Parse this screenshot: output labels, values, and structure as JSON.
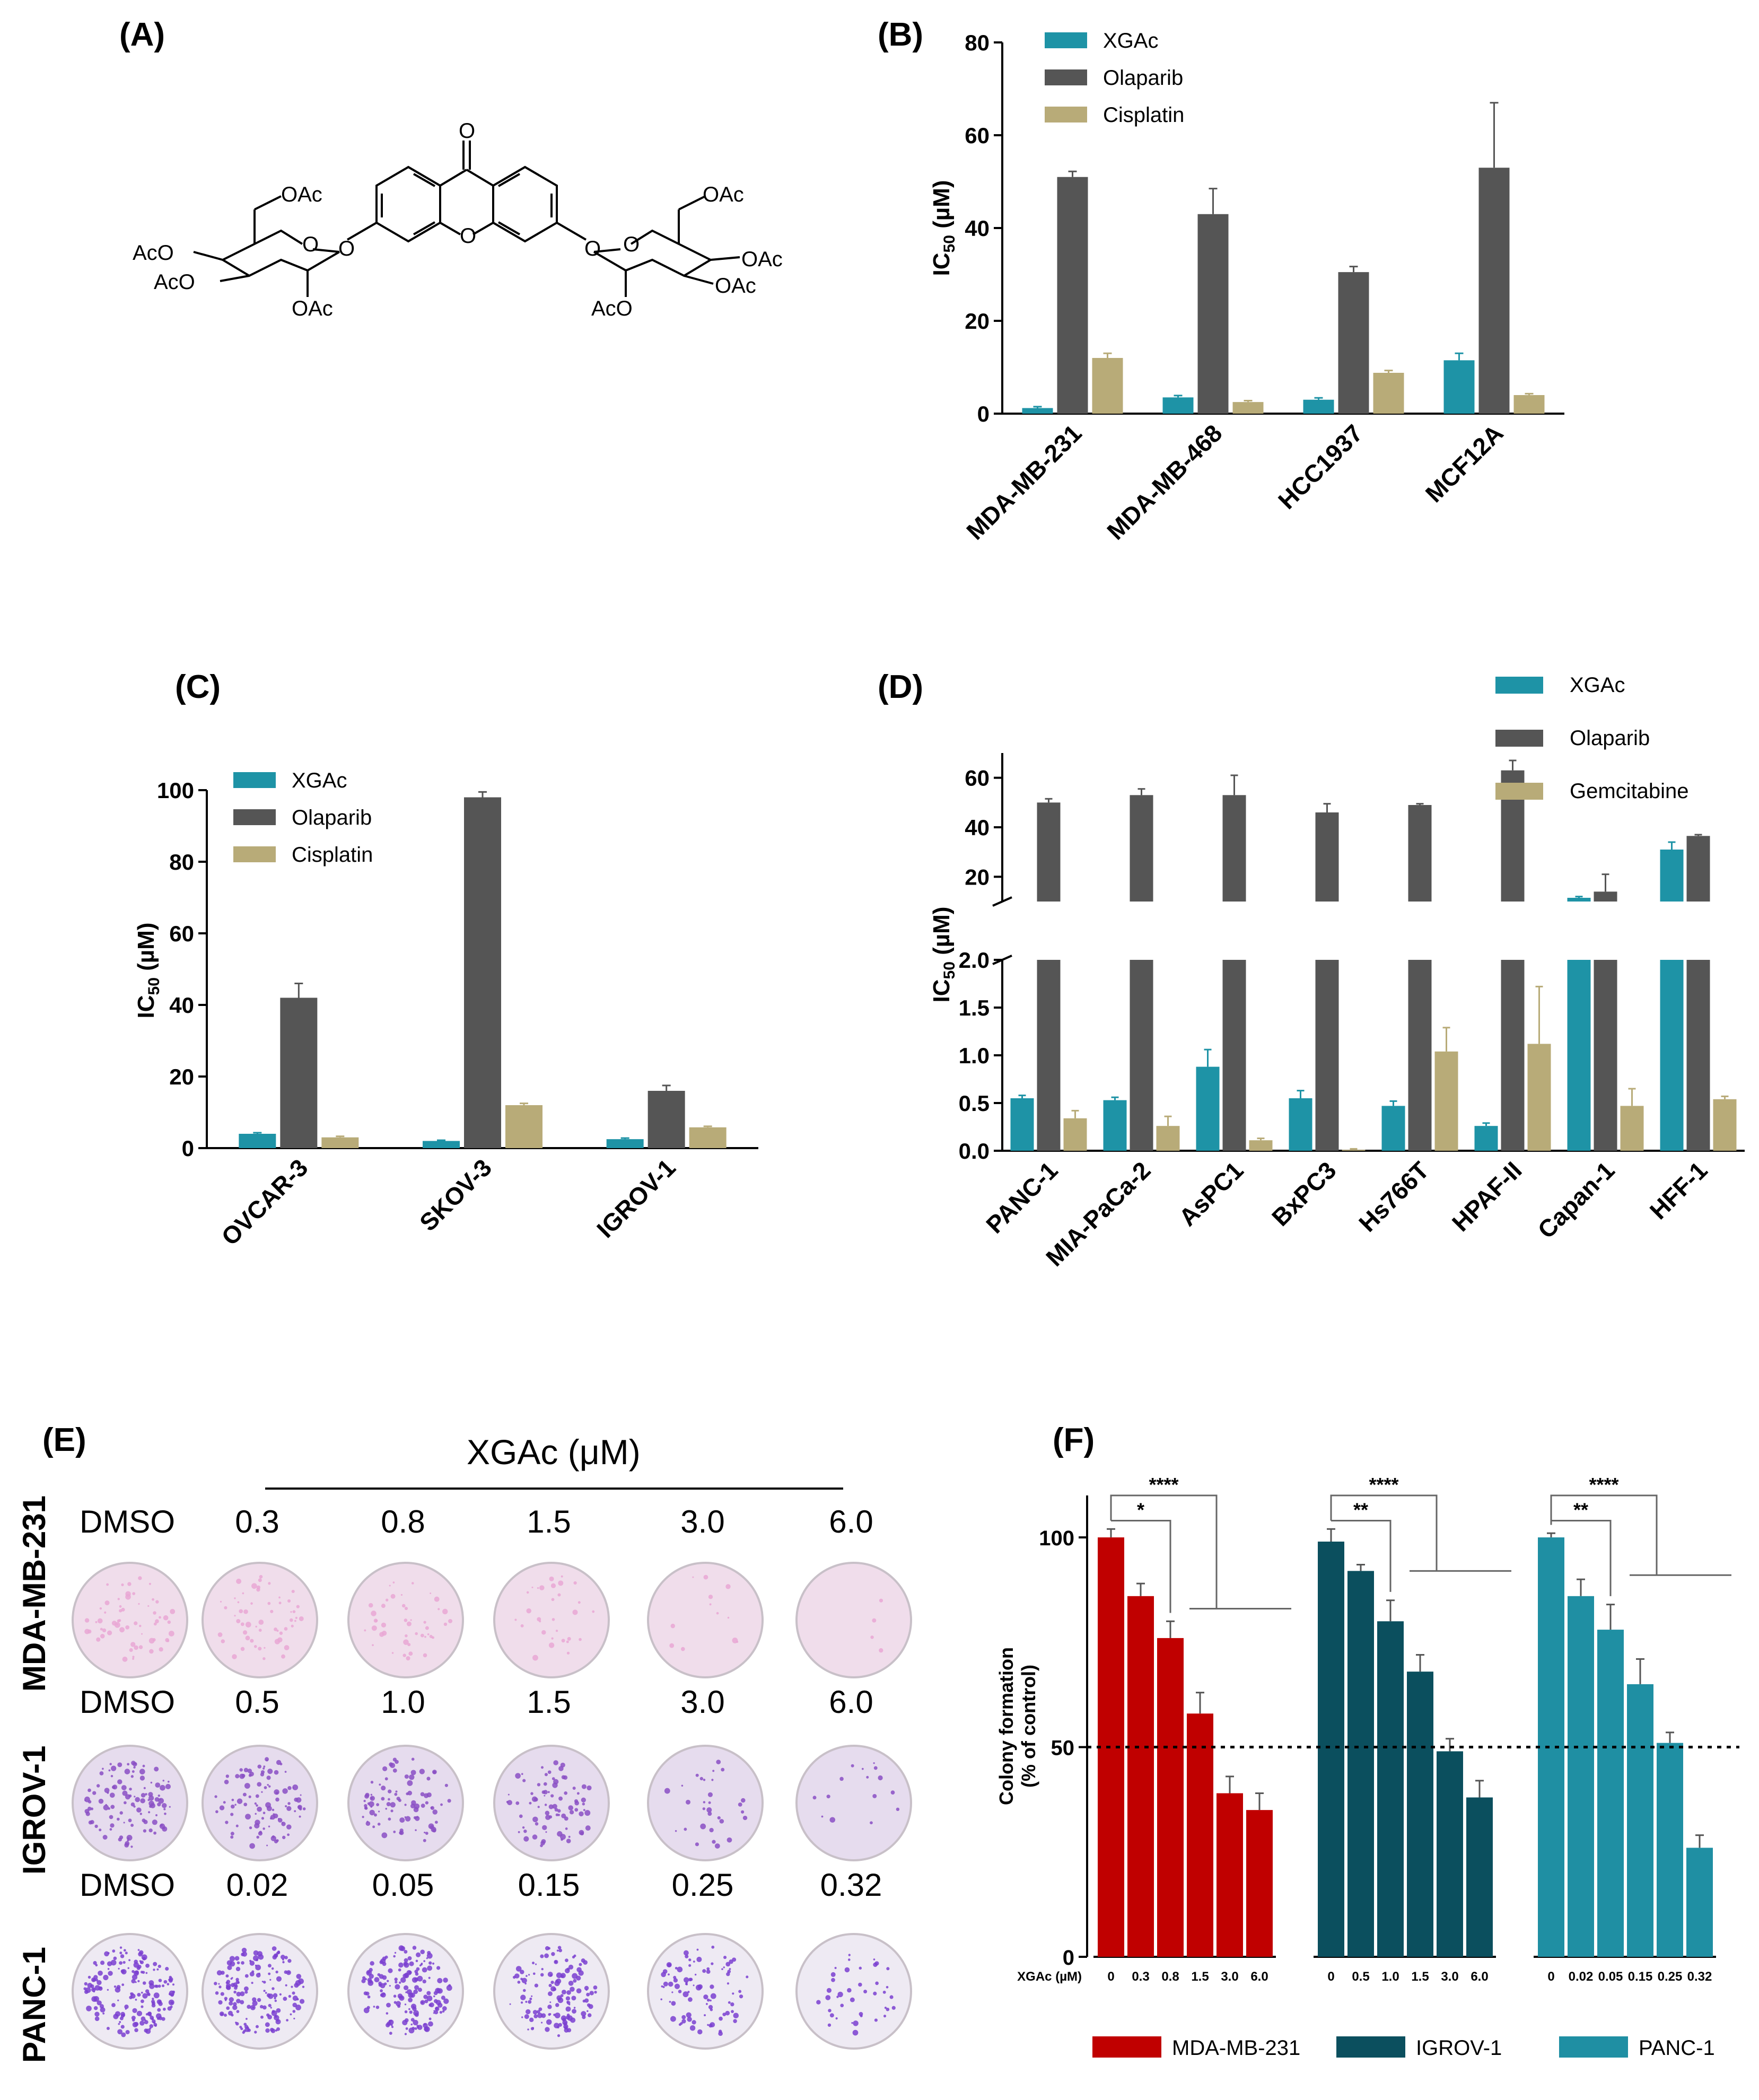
{
  "panels": {
    "A": "(A)",
    "B": "(B)",
    "C": "(C)",
    "D": "(D)",
    "E": "(E)",
    "F": "(F)"
  },
  "structure": {
    "carbonyl_o": "O",
    "ring_o": "O",
    "sugar_left": {
      "oac_top": "OAc",
      "aco_upper": "AcO",
      "aco_lower": "AcO",
      "oac_bottom": "OAc",
      "ring_o": "O",
      "link_o": "O"
    },
    "sugar_right": {
      "oac_top": "OAc",
      "oac_upper": "OAc",
      "oac_lower": "OAc",
      "aco_bottom": "AcO",
      "ring_o": "O",
      "link_o": "O"
    }
  },
  "colors": {
    "xgac": "#1e93a6",
    "olaparib": "#555555",
    "cisplatin": "#b8ab78",
    "mda": "#c00000",
    "igrov": "#0b4f5e",
    "panc": "#1f8fa3"
  },
  "chart_data": [
    {
      "id": "B",
      "type": "bar",
      "categories": [
        "MDA-MB-231",
        "MDA-MB-468",
        "HCC1937",
        "MCF12A"
      ],
      "series": [
        {
          "name": "XGAc",
          "values": [
            1.2,
            3.5,
            3.0,
            11.5
          ],
          "errors": [
            0.3,
            0.4,
            0.4,
            1.5
          ]
        },
        {
          "name": "Olaparib",
          "values": [
            51,
            43,
            30.5,
            53
          ],
          "errors": [
            1.2,
            5.5,
            1.2,
            14
          ]
        },
        {
          "name": "Cisplatin",
          "values": [
            12,
            2.5,
            8.8,
            4.0
          ],
          "errors": [
            1.0,
            0.3,
            0.5,
            0.3
          ]
        }
      ],
      "ylabel": "IC50 (µM)",
      "ylim": [
        0,
        80
      ],
      "yticks": [
        "0",
        "20",
        "40",
        "60",
        "80"
      ],
      "legend": "top-left"
    },
    {
      "id": "C",
      "type": "bar",
      "categories": [
        "OVCAR-3",
        "SKOV-3",
        "IGROV-1"
      ],
      "series": [
        {
          "name": "XGAc",
          "values": [
            4.0,
            2.0,
            2.5
          ],
          "errors": [
            0.3,
            0.2,
            0.3
          ]
        },
        {
          "name": "Olaparib",
          "values": [
            42,
            98,
            16
          ],
          "errors": [
            4,
            1.5,
            1.5
          ]
        },
        {
          "name": "Cisplatin",
          "values": [
            3.0,
            12,
            5.8
          ],
          "errors": [
            0.3,
            0.5,
            0.3
          ]
        }
      ],
      "ylabel": "IC50 (µM)",
      "ylim": [
        0,
        100
      ],
      "yticks": [
        "0",
        "20",
        "40",
        "60",
        "80",
        "100"
      ],
      "legend": "top-left"
    },
    {
      "id": "D",
      "type": "bar",
      "categories": [
        "PANC-1",
        "MIA-PaCa-2",
        "AsPC1",
        "BxPC3",
        "Hs766T",
        "HPAF-II",
        "Capan-1",
        "HFF-1"
      ],
      "series": [
        {
          "name": "XGAc",
          "values": [
            0.55,
            0.53,
            0.88,
            0.55,
            0.47,
            0.26,
            11.5,
            31
          ],
          "errors": [
            0.03,
            0.03,
            0.18,
            0.08,
            0.05,
            0.03,
            0.5,
            3
          ]
        },
        {
          "name": "Olaparib",
          "values": [
            50,
            53,
            53,
            46,
            49,
            63,
            14,
            36.5
          ],
          "errors": [
            1.5,
            2.5,
            8,
            3.5,
            0.5,
            4,
            7,
            0.5
          ]
        },
        {
          "name": "Gemcitabine",
          "values": [
            0.34,
            0.26,
            0.11,
            0.01,
            1.04,
            1.12,
            0.47,
            0.54
          ],
          "errors": [
            0.08,
            0.1,
            0.02,
            0.01,
            0.25,
            0.6,
            0.18,
            0.03
          ]
        }
      ],
      "ylabel": "IC50 (µM)",
      "ylim_lower": [
        0,
        2.0
      ],
      "ylim_upper": [
        10,
        70
      ],
      "yticks_lower": [
        "0.0",
        "0.5",
        "1.0",
        "1.5",
        "2.0"
      ],
      "yticks_upper": [
        "20",
        "40",
        "60"
      ],
      "legend": "top-right"
    },
    {
      "id": "F",
      "type": "bar",
      "groups": [
        {
          "name": "MDA-MB-231",
          "doses": [
            "0",
            "0.3",
            "0.8",
            "1.5",
            "3.0",
            "6.0"
          ],
          "values": [
            100,
            86,
            76,
            58,
            39,
            35
          ],
          "errors": [
            2,
            3,
            4,
            5,
            4,
            4
          ]
        },
        {
          "name": "IGROV-1",
          "doses": [
            "0",
            "0.5",
            "1.0",
            "1.5",
            "3.0",
            "6.0"
          ],
          "values": [
            99,
            92,
            80,
            68,
            49,
            38
          ],
          "errors": [
            3,
            1.5,
            5,
            4,
            3,
            4
          ]
        },
        {
          "name": "PANC-1",
          "doses": [
            "0",
            "0.02",
            "0.05",
            "0.15",
            "0.25",
            "0.32"
          ],
          "values": [
            100,
            86,
            78,
            65,
            51,
            26
          ],
          "errors": [
            1,
            4,
            6,
            6,
            2.5,
            3
          ]
        }
      ],
      "ylabel": "Colony formation (% of control)",
      "ylim": [
        0,
        110
      ],
      "yticks": [
        "0",
        "50",
        "100"
      ],
      "reference_line": 50,
      "xlabel": "XGAc (µM)",
      "significance": [
        [
          "*",
          "****"
        ],
        [
          "**",
          "****"
        ],
        [
          "**",
          "****"
        ]
      ],
      "legend": "bottom"
    }
  ],
  "panel_e": {
    "title": "XGAc (μM)",
    "rows": [
      {
        "label": "MDA-MB-231",
        "doses": [
          "DMSO",
          "0.3",
          "0.8",
          "1.5",
          "3.0",
          "6.0"
        ]
      },
      {
        "label": "IGROV-1",
        "doses": [
          "DMSO",
          "0.5",
          "1.0",
          "1.5",
          "3.0",
          "6.0"
        ]
      },
      {
        "label": "PANC-1",
        "doses": [
          "DMSO",
          "0.02",
          "0.05",
          "0.15",
          "0.25",
          "0.32"
        ]
      }
    ]
  }
}
